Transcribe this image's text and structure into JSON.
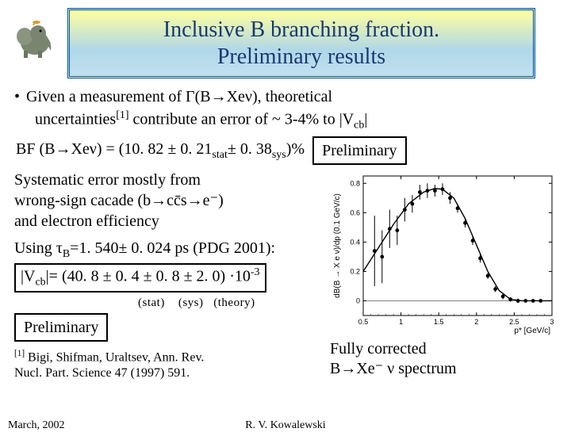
{
  "title_line1": "Inclusive B branching fraction.",
  "title_line2": "Preliminary results",
  "bullet_text1": "Given a measurement of Γ(B→Xeν), theoretical",
  "bullet_text2a": "uncertainties",
  "bullet_sup": "[1]",
  "bullet_text2b": " contribute an error of ~ 3-4% to ",
  "bullet_vcb": "|V",
  "bullet_vcb_sub": "cb",
  "bullet_vcb_end": "|",
  "bf_label": "BF (B→Xeν) =  (10. 82 ± 0. 21",
  "bf_stat": "stat",
  "bf_mid": "± 0. 38",
  "bf_sys": "sys",
  "bf_end": ")%",
  "preliminary": "Preliminary",
  "syst_line1": "Systematic error mostly from",
  "syst_line2": "wrong-sign cacade (b→cc̄s→e⁻)",
  "syst_line3": "and electron efficiency",
  "tau_line": "Using τ",
  "tau_sub": "B",
  "tau_rest": "=1. 540± 0. 024 ps (PDG 2001):",
  "vcb_open": "|V",
  "vcb_sub2": "cb",
  "vcb_rest": "|= (40. 8 ± 0. 4 ± 0. 8 ± 2. 0) ·10",
  "vcb_exp": "-3",
  "err_stat": "(stat)",
  "err_sys": "(sys)",
  "err_theory": "(theory)",
  "ref_sup": "[1]",
  "ref_text1": " Bigi, Shifman, Uraltsev, Ann. Rev.",
  "ref_text2": "Nucl. Part. Science 47 (1997) 591.",
  "footer_date": "March, 2002",
  "footer_author": "R. V. Kowalewski",
  "spectrum_line1": "Fully corrected",
  "spectrum_line2": "B→Xe⁻ ν spectrum",
  "plot": {
    "type": "scatter-with-curve",
    "xlabel": "p* [GeV/c]",
    "ylabel": "dB(B → X e ν)/dp (0.1 GeV/c)",
    "xlim": [
      0.5,
      3.0
    ],
    "ylim": [
      -0.1,
      0.85
    ],
    "xticks": [
      0.5,
      1,
      1.5,
      2,
      2.5,
      3
    ],
    "yticks": [
      0,
      0.2,
      0.4,
      0.6,
      0.8
    ],
    "background": "#ffffff",
    "axis_color": "#000000",
    "tick_fontsize": 9,
    "label_fontsize": 10,
    "data_points": [
      {
        "x": 0.65,
        "y": 0.34,
        "ey": 0.24
      },
      {
        "x": 0.75,
        "y": 0.3,
        "ey": 0.18
      },
      {
        "x": 0.85,
        "y": 0.49,
        "ey": 0.13
      },
      {
        "x": 0.95,
        "y": 0.48,
        "ey": 0.1
      },
      {
        "x": 1.05,
        "y": 0.62,
        "ey": 0.08
      },
      {
        "x": 1.15,
        "y": 0.66,
        "ey": 0.06
      },
      {
        "x": 1.25,
        "y": 0.74,
        "ey": 0.05
      },
      {
        "x": 1.35,
        "y": 0.75,
        "ey": 0.05
      },
      {
        "x": 1.45,
        "y": 0.75,
        "ey": 0.04
      },
      {
        "x": 1.55,
        "y": 0.76,
        "ey": 0.04
      },
      {
        "x": 1.65,
        "y": 0.7,
        "ey": 0.04
      },
      {
        "x": 1.75,
        "y": 0.63,
        "ey": 0.03
      },
      {
        "x": 1.85,
        "y": 0.53,
        "ey": 0.03
      },
      {
        "x": 1.95,
        "y": 0.41,
        "ey": 0.03
      },
      {
        "x": 2.05,
        "y": 0.29,
        "ey": 0.03
      },
      {
        "x": 2.15,
        "y": 0.17,
        "ey": 0.02
      },
      {
        "x": 2.25,
        "y": 0.08,
        "ey": 0.02
      },
      {
        "x": 2.35,
        "y": 0.03,
        "ey": 0.02
      },
      {
        "x": 2.45,
        "y": 0.01,
        "ey": 0.015
      },
      {
        "x": 2.55,
        "y": 0.0,
        "ey": 0.015
      },
      {
        "x": 2.65,
        "y": 0.0,
        "ey": 0.01
      },
      {
        "x": 2.75,
        "y": 0.0,
        "ey": 0.01
      },
      {
        "x": 2.85,
        "y": 0.0,
        "ey": 0.01
      }
    ],
    "curve": [
      {
        "x": 0.5,
        "y": 0.2
      },
      {
        "x": 0.7,
        "y": 0.36
      },
      {
        "x": 0.9,
        "y": 0.52
      },
      {
        "x": 1.1,
        "y": 0.66
      },
      {
        "x": 1.3,
        "y": 0.74
      },
      {
        "x": 1.45,
        "y": 0.765
      },
      {
        "x": 1.55,
        "y": 0.76
      },
      {
        "x": 1.7,
        "y": 0.7
      },
      {
        "x": 1.85,
        "y": 0.56
      },
      {
        "x": 2.0,
        "y": 0.38
      },
      {
        "x": 2.15,
        "y": 0.2
      },
      {
        "x": 2.3,
        "y": 0.07
      },
      {
        "x": 2.45,
        "y": 0.01
      },
      {
        "x": 2.6,
        "y": 0.0
      },
      {
        "x": 3.0,
        "y": 0.0
      }
    ],
    "marker_color": "#000000",
    "marker_size": 2.4,
    "curve_color": "#000000",
    "curve_width": 1.4
  }
}
